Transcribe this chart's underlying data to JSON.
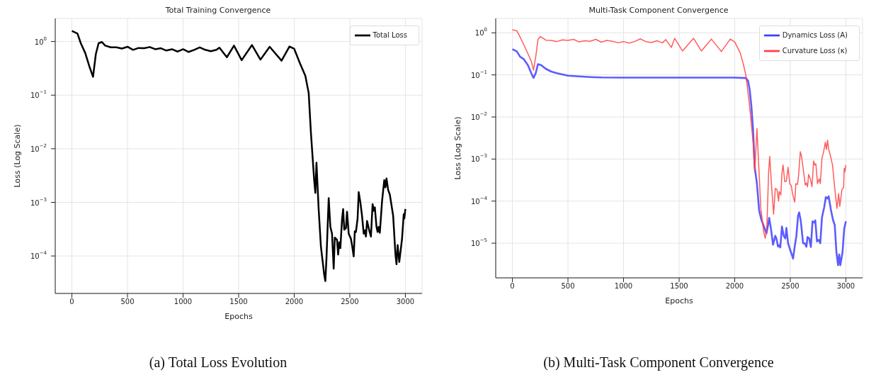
{
  "chart_data": [
    {
      "type": "line",
      "title": "Total Training Convergence",
      "xlabel": "Epochs",
      "ylabel": "Loss (Log Scale)",
      "log": "y",
      "grid": true,
      "legend": "top right",
      "marker": "none",
      "line_style": "solid",
      "xlim": [
        -150,
        3150
      ],
      "xticks": [
        0,
        500,
        1000,
        1500,
        2000,
        2500,
        3000
      ],
      "ylim": [
        2e-05,
        2.7
      ],
      "yticks": [
        {
          "value": 1,
          "label": "10$^{0}$"
        },
        {
          "value": 0.1,
          "label": "10$^{−1}$"
        },
        {
          "value": 0.01,
          "label": "10$^{−2}$"
        },
        {
          "value": 0.001,
          "label": "10$^{−3}$"
        },
        {
          "value": 0.0001,
          "label": "10$^{−4}$"
        }
      ],
      "annotations": [
        "(a) Total Loss Evolution"
      ],
      "series": [
        {
          "name": "Total Loss",
          "color": "#000000",
          "x": [
            0,
            50,
            80,
            120,
            160,
            190,
            215,
            240,
            270,
            300,
            350,
            400,
            450,
            500,
            550,
            600,
            650,
            700,
            750,
            800,
            850,
            900,
            950,
            1000,
            1050,
            1100,
            1150,
            1200,
            1250,
            1300,
            1327,
            1394,
            1458,
            1527,
            1620,
            1696,
            1779,
            1886,
            1957,
            2000,
            2050,
            2100,
            2130,
            2150,
            2180,
            2190,
            2200,
            2220,
            2240,
            2270,
            2280,
            2290,
            2310,
            2325,
            2340,
            2355,
            2365,
            2385,
            2395,
            2405,
            2415,
            2430,
            2440,
            2450,
            2465,
            2475,
            2490,
            2510,
            2520,
            2535,
            2545,
            2555,
            2570,
            2580,
            2595,
            2610,
            2625,
            2635,
            2645,
            2655,
            2675,
            2690,
            2705,
            2715,
            2725,
            2740,
            2750,
            2760,
            2770,
            2790,
            2810,
            2820,
            2830,
            2845,
            2860,
            2890,
            2910,
            2920,
            2930,
            2945,
            2970,
            2985,
            2990,
            3000
          ],
          "values": [
            1.58,
            1.41,
            0.93,
            0.61,
            0.33,
            0.22,
            0.58,
            0.93,
            0.98,
            0.84,
            0.78,
            0.78,
            0.74,
            0.8,
            0.7,
            0.76,
            0.75,
            0.79,
            0.72,
            0.75,
            0.68,
            0.72,
            0.65,
            0.72,
            0.64,
            0.7,
            0.78,
            0.7,
            0.66,
            0.7,
            0.77,
            0.51,
            0.84,
            0.45,
            0.86,
            0.46,
            0.8,
            0.44,
            0.81,
            0.73,
            0.4,
            0.23,
            0.11,
            0.02,
            0.0025,
            0.0015,
            0.0055,
            0.00073,
            0.00015,
            4.4e-05,
            3.4e-05,
            9e-05,
            0.0012,
            0.00035,
            0.00026,
            5.8e-05,
            0.00022,
            0.0002,
            0.000106,
            0.00018,
            0.00014,
            0.00048,
            0.00075,
            0.00031,
            0.00033,
            0.00067,
            0.00026,
            0.00021,
            0.00016,
            9.8e-05,
            0.00029,
            0.00028,
            0.0005,
            0.00155,
            0.001,
            0.00056,
            0.00026,
            0.0003,
            0.00023,
            0.00045,
            0.0003,
            0.00023,
            0.00093,
            0.0007,
            0.00081,
            0.00035,
            0.00028,
            0.00035,
            0.00027,
            0.00105,
            0.0026,
            0.0019,
            0.0028,
            0.0017,
            0.0014,
            0.00056,
            0.00011,
            7e-05,
            0.00016,
            7.7e-05,
            0.00021,
            0.0006,
            0.0005,
            0.00075
          ]
        }
      ]
    },
    {
      "type": "line",
      "title": "Multi-Task Component Convergence",
      "xlabel": "Epochs",
      "ylabel": "Loss (Log Scale)",
      "log": "y",
      "grid": true,
      "legend": "top right",
      "marker": "none",
      "line_style": "solid",
      "xlim": [
        -150,
        3150
      ],
      "xticks": [
        0,
        500,
        1000,
        1500,
        2000,
        2500,
        3000
      ],
      "ylim": [
        1.5e-06,
        2.2
      ],
      "yticks": [
        {
          "value": 1,
          "label": "10$^{0}$"
        },
        {
          "value": 0.1,
          "label": "10$^{−1}$"
        },
        {
          "value": 0.01,
          "label": "10$^{−2}$"
        },
        {
          "value": 0.001,
          "label": "10$^{−3}$"
        },
        {
          "value": 0.0001,
          "label": "10$^{−4}$"
        },
        {
          "value": 1e-05,
          "label": "10$^{−5}$"
        }
      ],
      "annotations": [
        "(b) Multi-Task Component Convergence"
      ],
      "series": [
        {
          "name": "Dynamics Loss (A)",
          "color": "#4040ff",
          "x": [
            0,
            40,
            70,
            100,
            140,
            170,
            190,
            210,
            230,
            260,
            300,
            350,
            400,
            500,
            600,
            700,
            800,
            1000,
            1500,
            2000,
            2100,
            2120,
            2135,
            2150,
            2165,
            2180,
            2200,
            2220,
            2240,
            2260,
            2285,
            2300,
            2310,
            2325,
            2345,
            2365,
            2375,
            2390,
            2400,
            2410,
            2425,
            2440,
            2455,
            2465,
            2480,
            2500,
            2515,
            2525,
            2540,
            2555,
            2570,
            2580,
            2595,
            2615,
            2630,
            2645,
            2655,
            2670,
            2685,
            2700,
            2715,
            2725,
            2740,
            2755,
            2770,
            2785,
            2805,
            2820,
            2835,
            2845,
            2865,
            2885,
            2900,
            2915,
            2930,
            2940,
            2950,
            2970,
            2985,
            3000
          ],
          "values": [
            0.41,
            0.36,
            0.27,
            0.24,
            0.17,
            0.11,
            0.085,
            0.11,
            0.18,
            0.17,
            0.14,
            0.12,
            0.11,
            0.096,
            0.092,
            0.089,
            0.087,
            0.086,
            0.086,
            0.086,
            0.084,
            0.072,
            0.044,
            0.018,
            0.005,
            0.00064,
            0.00026,
            5.9e-05,
            3.6e-05,
            2.6e-05,
            1.7e-05,
            2.7e-05,
            4e-05,
            2.3e-05,
            9.2e-06,
            1.5e-05,
            1.3e-05,
            8.3e-06,
            9e-06,
            7.9e-06,
            2.5e-05,
            1.5e-05,
            1.3e-05,
            2.3e-05,
            1e-05,
            6.8e-06,
            5.2e-06,
            4.3e-06,
            8.4e-06,
            1.5e-05,
            4.5e-05,
            5.4e-05,
            3.3e-05,
            1e-05,
            9.9e-06,
            8.2e-06,
            1.4e-05,
            1.3e-05,
            8.1e-06,
            3.3e-05,
            3.1e-05,
            3.5e-05,
            1.1e-05,
            1.2e-05,
            1e-05,
            4.1e-05,
            7.1e-05,
            0.000125,
            0.000115,
            0.00013,
            6.3e-05,
            3.5e-05,
            2.7e-05,
            6.1e-06,
            3e-06,
            5.4e-06,
            3e-06,
            6.1e-06,
            2.2e-05,
            3.3e-05
          ]
        },
        {
          "name": "Curvature Loss (κ)",
          "color": "#ff4040",
          "x": [
            0,
            40,
            60,
            100,
            140,
            170,
            190,
            210,
            230,
            250,
            280,
            300,
            350,
            400,
            450,
            500,
            550,
            600,
            650,
            700,
            750,
            800,
            850,
            900,
            950,
            1000,
            1050,
            1100,
            1150,
            1200,
            1250,
            1300,
            1350,
            1380,
            1430,
            1460,
            1530,
            1630,
            1700,
            1790,
            1880,
            1960,
            2000,
            2050,
            2080,
            2100,
            2130,
            2150,
            2165,
            2180,
            2200,
            2215,
            2235,
            2260,
            2275,
            2290,
            2305,
            2315,
            2330,
            2350,
            2365,
            2380,
            2395,
            2400,
            2415,
            2425,
            2435,
            2450,
            2465,
            2480,
            2495,
            2510,
            2520,
            2540,
            2550,
            2565,
            2575,
            2590,
            2600,
            2620,
            2635,
            2645,
            2655,
            2665,
            2680,
            2695,
            2710,
            2720,
            2730,
            2745,
            2760,
            2770,
            2785,
            2800,
            2815,
            2825,
            2835,
            2845,
            2855,
            2880,
            2900,
            2920,
            2935,
            2945,
            2965,
            2980,
            2985,
            2990,
            3000
          ],
          "values": [
            1.18,
            1.12,
            0.89,
            0.54,
            0.32,
            0.21,
            0.13,
            0.27,
            0.69,
            0.81,
            0.74,
            0.67,
            0.66,
            0.62,
            0.68,
            0.66,
            0.7,
            0.61,
            0.65,
            0.63,
            0.7,
            0.6,
            0.66,
            0.63,
            0.58,
            0.62,
            0.57,
            0.62,
            0.72,
            0.62,
            0.59,
            0.65,
            0.58,
            0.69,
            0.45,
            0.74,
            0.37,
            0.74,
            0.37,
            0.71,
            0.36,
            0.71,
            0.61,
            0.33,
            0.17,
            0.099,
            0.023,
            0.0066,
            0.0025,
            0.00049,
            0.0053,
            0.0008,
            6.6e-05,
            1.9e-05,
            1.3e-05,
            2.7e-05,
            0.00049,
            0.00115,
            0.00027,
            4.9e-05,
            0.0002,
            0.00019,
            0.0001,
            0.00017,
            0.00014,
            0.00046,
            0.00072,
            0.00029,
            0.0003,
            0.00064,
            0.00026,
            0.00023,
            0.00015,
            9.5e-05,
            0.00026,
            0.00025,
            0.00042,
            0.0015,
            0.0012,
            0.00049,
            0.00024,
            0.00027,
            0.00022,
            0.00043,
            0.00034,
            0.00022,
            0.0009,
            0.00072,
            0.00077,
            0.00026,
            0.00034,
            0.00026,
            0.00105,
            0.0015,
            0.0025,
            0.0017,
            0.0028,
            0.0017,
            0.0014,
            0.00072,
            0.0002,
            6.7e-05,
            0.00015,
            7.5e-05,
            0.00019,
            0.00021,
            0.0006,
            0.00049,
            0.00072
          ]
        }
      ]
    }
  ]
}
